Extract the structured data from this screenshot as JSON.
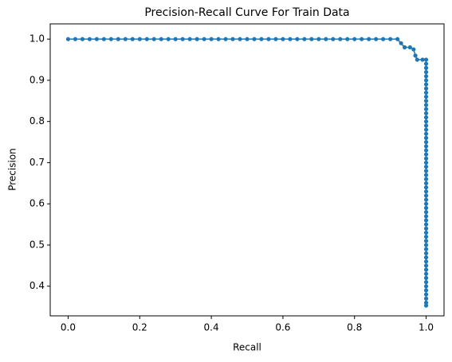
{
  "chart_data": {
    "type": "line",
    "title": "Precision-Recall Curve For Train Data",
    "x_label": "Recall",
    "y_label": "Precision",
    "x": [
      0,
      0.02,
      0.04,
      0.06,
      0.08,
      0.1,
      0.12,
      0.14,
      0.16,
      0.18,
      0.2,
      0.22,
      0.24,
      0.26,
      0.28,
      0.3,
      0.32,
      0.34,
      0.36,
      0.38,
      0.4,
      0.42,
      0.44,
      0.46,
      0.48,
      0.5,
      0.52,
      0.54,
      0.56,
      0.58,
      0.6,
      0.62,
      0.64,
      0.66,
      0.68,
      0.7,
      0.72,
      0.74,
      0.76,
      0.78,
      0.8,
      0.82,
      0.84,
      0.86,
      0.88,
      0.9,
      0.92,
      0.93,
      0.94,
      0.955,
      0.965,
      0.97,
      0.975,
      0.99,
      1,
      1,
      1,
      1,
      1,
      1,
      1,
      1,
      1,
      1,
      1,
      1,
      1,
      1,
      1,
      1,
      1,
      1,
      1,
      1,
      1,
      1,
      1,
      1,
      1,
      1,
      1,
      1,
      1,
      1,
      1,
      1,
      1,
      1,
      1,
      1,
      1,
      1,
      1,
      1,
      1,
      1,
      1,
      1,
      1,
      1,
      1,
      1,
      1,
      1,
      1,
      1,
      1,
      1,
      1,
      1,
      1,
      1,
      1,
      1,
      1
    ],
    "series": [
      {
        "color": "#1f77b4",
        "values": [
          1,
          1,
          1,
          1,
          1,
          1,
          1,
          1,
          1,
          1,
          1,
          1,
          1,
          1,
          1,
          1,
          1,
          1,
          1,
          1,
          1,
          1,
          1,
          1,
          1,
          1,
          1,
          1,
          1,
          1,
          1,
          1,
          1,
          1,
          1,
          1,
          1,
          1,
          1,
          1,
          1,
          1,
          1,
          1,
          1,
          1,
          1,
          0.99,
          0.98,
          0.98,
          0.975,
          0.96,
          0.95,
          0.95,
          0.95,
          0.94,
          0.93,
          0.92,
          0.91,
          0.9,
          0.89,
          0.88,
          0.87,
          0.86,
          0.85,
          0.84,
          0.83,
          0.82,
          0.81,
          0.8,
          0.79,
          0.78,
          0.77,
          0.76,
          0.75,
          0.74,
          0.73,
          0.72,
          0.71,
          0.7,
          0.69,
          0.68,
          0.67,
          0.66,
          0.65,
          0.64,
          0.63,
          0.62,
          0.61,
          0.6,
          0.59,
          0.58,
          0.57,
          0.56,
          0.55,
          0.54,
          0.53,
          0.52,
          0.51,
          0.5,
          0.49,
          0.48,
          0.47,
          0.46,
          0.45,
          0.44,
          0.43,
          0.42,
          0.41,
          0.4,
          0.39,
          0.38,
          0.37,
          0.36,
          0.353
        ]
      }
    ],
    "xlim": [
      -0.05,
      1.05
    ],
    "ylim": [
      0.328,
      1.037
    ],
    "xticks": [
      {
        "value": 0,
        "label": "0.0"
      },
      0.2,
      0.4,
      0.6,
      0.8,
      {
        "value": 1,
        "label": "1.0"
      }
    ],
    "yticks": [
      0.4,
      0.5,
      0.6,
      0.7,
      0.8,
      0.9,
      {
        "value": 1,
        "label": "1.0"
      }
    ],
    "grid": false,
    "markers": true
  }
}
